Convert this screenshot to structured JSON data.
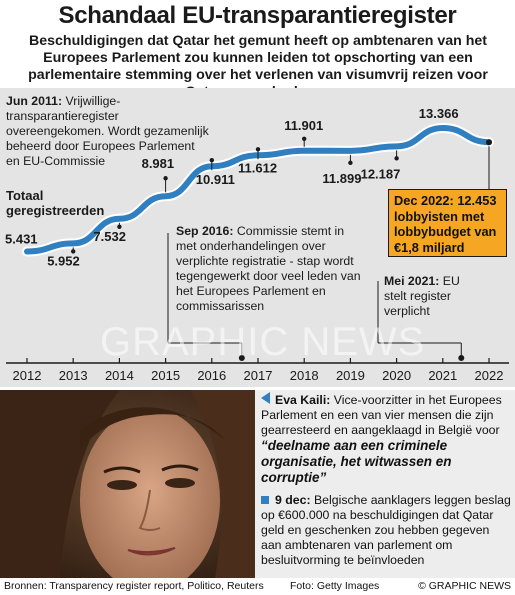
{
  "title": "Schandaal EU-transparantieregister",
  "subtitle": "Beschuldigingen dat Qatar het gemunt heeft op ambtenaren van het Europees Parlement zou kunnen leiden tot opschorting van een parlementaire stemming over het verlenen van visumvrij reizen voor Qatarese onderdanen",
  "annotations": {
    "jun2011_date": "Jun 2011:",
    "jun2011_text": "Vrijwillige-transparantieregister overeengekomen. Wordt gezamenlijk beheerd door Europees Parlement en EU-Commissie",
    "total_label": "Totaal geregistreerden",
    "sep2016_date": "Sep 2016:",
    "sep2016_text": "Commissie stemt in met onderhandelingen over verplichte registratie - stap wordt tegengewerkt door veel leden van het Europees Parlement en commissarissen",
    "mei2021_date": "Mei 2021:",
    "mei2021_text": "EU stelt register verplicht",
    "dec2022_text": "Dec 2022: 12.453 lobbyisten met lobbybudget van €1,8 miljard"
  },
  "watermark": "GRAPHIC NEWS",
  "news": {
    "kaili_name": "Eva Kaili:",
    "kaili_text": "Vice-voorzitter in het Europees Parlement en een van vier mensen die zijn gearresteerd en aangeklaagd in België voor",
    "kaili_quote": "“deelname aan een criminele organisatie, het witwassen en corruptie”",
    "dec9_date": "9 dec:",
    "dec9_text": "Belgische aanklagers leggen beslag op €600.000 na beschuldigingen dat Qatar geld en geschenken zou hebben gegeven aan ambtenaren van parlement om besluitvorming te beïnvloeden"
  },
  "footer": {
    "sources": "Bronnen: Transparency register report, Politico, Reuters",
    "photo": "Foto: Getty Images",
    "credit": "© GRAPHIC NEWS"
  },
  "colors": {
    "line": "#2f7fc1",
    "highlight_box": "#f5a623",
    "panel": "#e4e4e4",
    "news_marker": "#2f7fc1"
  },
  "chart_data": {
    "type": "line",
    "x_ticks": [
      "2012",
      "2013",
      "2014",
      "2015",
      "2016",
      "2017",
      "2018",
      "2019",
      "2020",
      "2021",
      "2022"
    ],
    "x_range": [
      2012,
      2022
    ],
    "ylim": [
      4500,
      14200
    ],
    "series": [
      {
        "points": [
          {
            "x": 2012,
            "y": 5431
          },
          {
            "x": 2013,
            "y": 5952
          },
          {
            "x": 2014,
            "y": 7532
          },
          {
            "x": 2015,
            "y": 8981
          },
          {
            "x": 2016,
            "y": 10911
          },
          {
            "x": 2017,
            "y": 11612
          },
          {
            "x": 2018,
            "y": 11901
          },
          {
            "x": 2019,
            "y": 11899
          },
          {
            "x": 2020,
            "y": 12187
          },
          {
            "x": 2021,
            "y": 13366
          },
          {
            "x": 2022,
            "y": 12453
          }
        ]
      }
    ],
    "labels": [
      {
        "x": 2012,
        "y": 5431,
        "text": "5.431"
      },
      {
        "x": 2013,
        "y": 5952,
        "text": "5.952"
      },
      {
        "x": 2014,
        "y": 7532,
        "text": "7.532"
      },
      {
        "x": 2015,
        "y": 8981,
        "text": "8.981"
      },
      {
        "x": 2016,
        "y": 10911,
        "text": "10.911"
      },
      {
        "x": 2017,
        "y": 11612,
        "text": "11.612"
      },
      {
        "x": 2018,
        "y": 11901,
        "text": "11.901"
      },
      {
        "x": 2019,
        "y": 11899,
        "text": "11.899"
      },
      {
        "x": 2020,
        "y": 12187,
        "text": "12.187"
      },
      {
        "x": 2021,
        "y": 13366,
        "text": "13.366"
      }
    ],
    "grid": false
  }
}
